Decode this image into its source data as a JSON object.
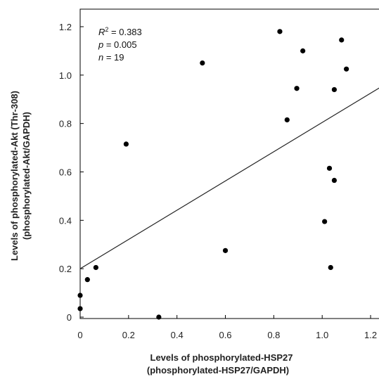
{
  "chart_data": {
    "type": "scatter",
    "title": "",
    "xlabel": [
      "Levels of phosphorylated-HSP27",
      "(phosphorylated-HSP27/GAPDH)"
    ],
    "ylabel": [
      "Levels of phosphorylated-Akt (Thr-308)",
      "(phosphorylated-Akt/GAPDH)"
    ],
    "xlim": [
      0,
      1.2
    ],
    "ylim": [
      0,
      1.2
    ],
    "x_ticks": [
      "0",
      "0.2",
      "0.4",
      "0.6",
      "0.8",
      "1.0",
      "1.2"
    ],
    "y_ticks": [
      "0",
      "0.2",
      "0.4",
      "0.6",
      "0.8",
      "1.0",
      "1.2"
    ],
    "grid": false,
    "points": [
      {
        "x": 0.0,
        "y": 0.035
      },
      {
        "x": 0.0,
        "y": 0.09
      },
      {
        "x": 0.03,
        "y": 0.155
      },
      {
        "x": 0.065,
        "y": 0.205
      },
      {
        "x": 0.19,
        "y": 0.715
      },
      {
        "x": 0.325,
        "y": 0.0
      },
      {
        "x": 0.505,
        "y": 1.05
      },
      {
        "x": 0.6,
        "y": 0.275
      },
      {
        "x": 0.825,
        "y": 1.18
      },
      {
        "x": 0.855,
        "y": 0.815
      },
      {
        "x": 0.895,
        "y": 0.945
      },
      {
        "x": 0.92,
        "y": 1.1
      },
      {
        "x": 1.01,
        "y": 0.395
      },
      {
        "x": 1.03,
        "y": 0.615
      },
      {
        "x": 1.035,
        "y": 0.205
      },
      {
        "x": 1.05,
        "y": 0.565
      },
      {
        "x": 1.05,
        "y": 0.94
      },
      {
        "x": 1.08,
        "y": 1.145
      },
      {
        "x": 1.1,
        "y": 1.025
      }
    ],
    "trendline": {
      "x": [
        0,
        1.25
      ],
      "y": [
        0.2,
        0.955
      ]
    },
    "annotations": {
      "r2_label": "R",
      "r2_sup": "2",
      "r2_value": " = 0.383",
      "p_label": "p",
      "p_value": " = 0.005",
      "n_label": "n",
      "n_value": " = 19"
    }
  }
}
